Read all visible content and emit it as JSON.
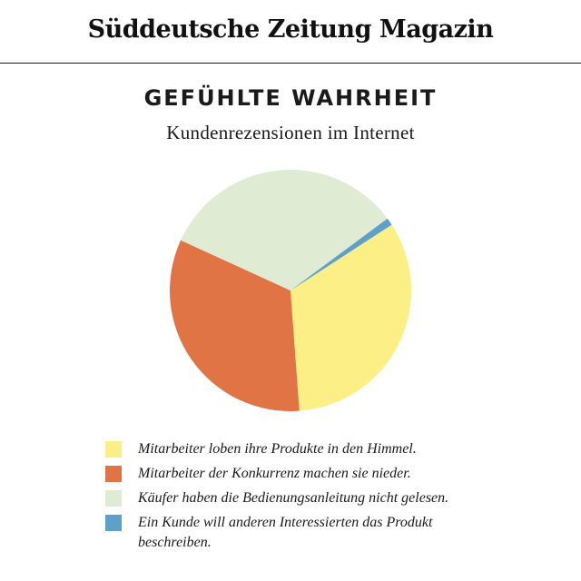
{
  "masthead": {
    "title": "Süddeutsche Zeitung Magazin"
  },
  "chart_data": {
    "type": "pie",
    "title": "GEFÜHLTE WAHRHEIT",
    "subtitle": "Kundenrezensionen im Internet",
    "legend_placement": "bottom",
    "slices": [
      {
        "label": "Mitarbeiter loben ihre Produkte in den Himmel.",
        "value": 33,
        "color": "#fbef85"
      },
      {
        "label": "Mitarbeiter der Konkurrenz machen sie nieder.",
        "value": 33,
        "color": "#e07444"
      },
      {
        "label": "Käufer haben die Bedienungsanleitung nicht gelesen.",
        "value": 33,
        "color": "#dfecd3"
      },
      {
        "label": "Ein Kunde will anderen Interessierten das Produkt beschreiben.",
        "value": 1,
        "color": "#5fa0c8"
      }
    ],
    "start_angle_deg": 57,
    "direction": "clockwise"
  }
}
